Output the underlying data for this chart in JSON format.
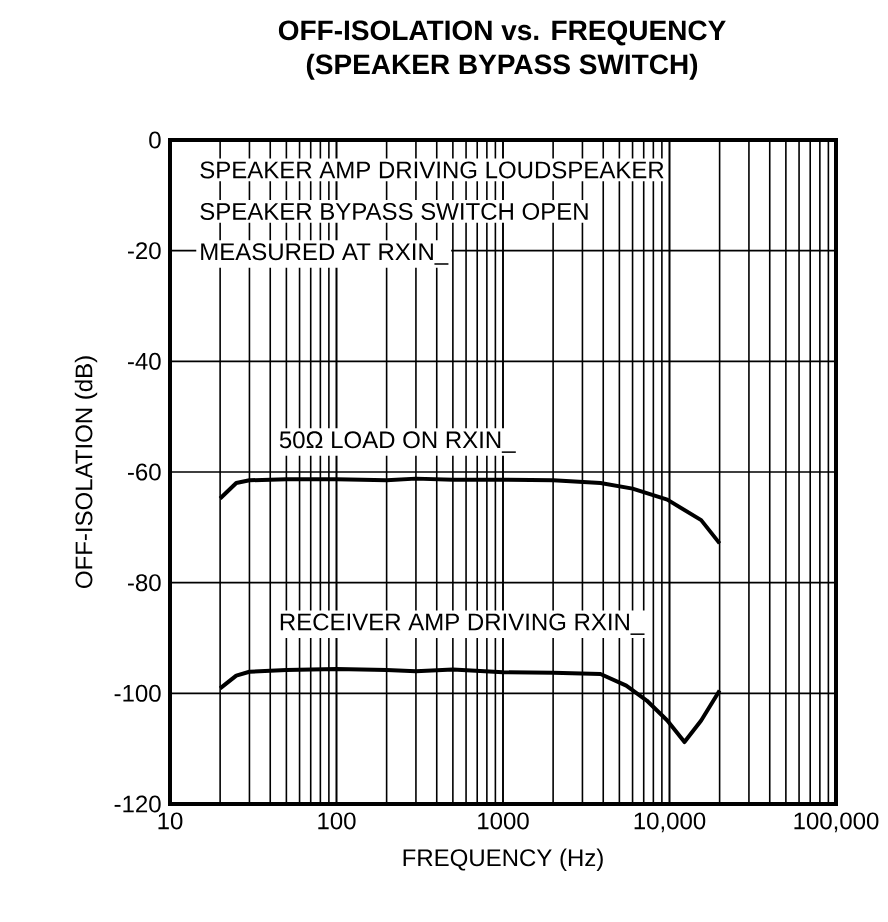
{
  "chart_data": {
    "type": "line",
    "title": "OFF-ISOLATION vs. FREQUENCY",
    "subtitle": "(SPEAKER BYPASS SWITCH)",
    "xlabel": "FREQUENCY (Hz)",
    "ylabel": "OFF-ISOLATION (dB)",
    "log": "x",
    "xlim": [
      10,
      100000
    ],
    "ylim": [
      -120,
      0
    ],
    "xticks": [
      10,
      100,
      1000,
      {
        "value": 10000,
        "label": "10,000"
      },
      {
        "value": 100000,
        "label": "100,000"
      }
    ],
    "yticks": [
      -120,
      -100,
      -80,
      -60,
      -40,
      -20,
      0
    ],
    "grid": true,
    "marker": "none",
    "line_style": "solid",
    "annotations": [
      "SPEAKER AMP DRIVING LOUDSPEAKER",
      "SPEAKER BYPASS SWITCH OPEN",
      "MEASURED AT RXIN_",
      "50Ω LOAD ON RXIN_",
      "RECEIVER AMP DRIVING RXIN_"
    ],
    "series": [
      {
        "color": "#000000",
        "x": [
          20,
          25,
          30,
          50,
          100,
          200,
          300,
          500,
          1000,
          2000,
          3850,
          6000,
          9700,
          15500,
          20000
        ],
        "values": [
          -64.8,
          -62,
          -61.5,
          -61.3,
          -61.3,
          -61.5,
          -61.2,
          -61.4,
          -61.4,
          -61.5,
          -62,
          -63,
          -65,
          -68.7,
          -72.9
        ]
      },
      {
        "color": "#000000",
        "x": [
          20,
          25,
          30,
          50,
          100,
          200,
          300,
          500,
          1000,
          2000,
          3850,
          5500,
          7300,
          9700,
          12300,
          15500,
          20000
        ],
        "values": [
          -99.1,
          -96.8,
          -96.1,
          -95.8,
          -95.6,
          -95.8,
          -96,
          -95.7,
          -96.2,
          -96.3,
          -96.5,
          -98.6,
          -101.3,
          -104.9,
          -108.8,
          -104.9,
          -99.5
        ]
      }
    ]
  }
}
